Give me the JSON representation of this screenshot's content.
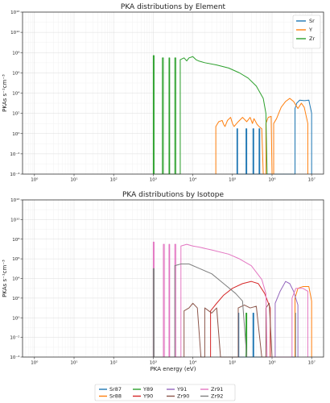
{
  "chart_data": [
    {
      "type": "line",
      "title": "PKA distributions by Element",
      "xlabel": "",
      "ylabel": "PKAs s$^{-1}$cm$^{-3}$",
      "xscale": "log",
      "yscale": "log",
      "xlim": [
        0.5,
        20000000
      ],
      "ylim": [
        0.0001,
        1000000000000
      ],
      "x_ticks": [
        "10^0",
        "10^1",
        "10^2",
        "10^3",
        "10^4",
        "10^5",
        "10^6",
        "10^7"
      ],
      "y_ticks": [
        "10^-4",
        "10^-2",
        "10^0",
        "10^2",
        "10^4",
        "10^6",
        "10^8",
        "10^10",
        "10^12"
      ],
      "grid": true,
      "legend": "top-right",
      "series": [
        {
          "name": "Sr",
          "color": "#1f77b4",
          "points": [
            [
              130000,
              0.0001
            ],
            [
              130000,
              3
            ],
            [
              135000,
              3
            ],
            [
              135000,
              0.0001
            ],
            [
              220000,
              0.0001
            ],
            [
              220000,
              3
            ],
            [
              230000,
              3
            ],
            [
              230000,
              0.0001
            ],
            [
              330000,
              0.0001
            ],
            [
              330000,
              3
            ],
            [
              345000,
              3
            ],
            [
              345000,
              0.0001
            ],
            [
              470000,
              0.0001
            ],
            [
              470000,
              3
            ],
            [
              490000,
              3
            ],
            [
              490000,
              0.0001
            ],
            [
              3800000,
              0.0001
            ],
            [
              3800000,
              300
            ],
            [
              4200000,
              1000
            ],
            [
              5000000,
              2000
            ],
            [
              6500000,
              1800
            ],
            [
              8500000,
              2000
            ],
            [
              10000000,
              100
            ],
            [
              10000000,
              0.0001
            ]
          ]
        },
        {
          "name": "Y",
          "color": "#ff7f0e",
          "points": [
            [
              38000,
              0.0001
            ],
            [
              38000,
              5
            ],
            [
              45000,
              15
            ],
            [
              55000,
              20
            ],
            [
              60000,
              8
            ],
            [
              65000,
              5
            ],
            [
              75000,
              20
            ],
            [
              90000,
              40
            ],
            [
              100000,
              10
            ],
            [
              110000,
              5
            ],
            [
              140000,
              15
            ],
            [
              180000,
              40
            ],
            [
              230000,
              15
            ],
            [
              280000,
              40
            ],
            [
              320000,
              10
            ],
            [
              350000,
              30
            ],
            [
              420000,
              8
            ],
            [
              470000,
              5
            ],
            [
              550000,
              3
            ],
            [
              600000,
              0.0001
            ],
            [
              700000,
              0.0001
            ],
            [
              700000,
              10
            ],
            [
              800000,
              40
            ],
            [
              950000,
              50
            ],
            [
              1000000,
              0.0001
            ],
            [
              1100000,
              0.0001
            ],
            [
              1100000,
              10
            ],
            [
              1300000,
              30
            ],
            [
              1700000,
              400
            ],
            [
              2200000,
              1500
            ],
            [
              2800000,
              3000
            ],
            [
              3500000,
              1500
            ],
            [
              4500000,
              300
            ],
            [
              5500000,
              1000
            ],
            [
              6500000,
              400
            ],
            [
              8000000,
              10
            ],
            [
              8000000,
              0.0001
            ]
          ]
        },
        {
          "name": "Zr",
          "color": "#2ca02c",
          "points": [
            [
              1000,
              0.0001
            ],
            [
              1000,
              50000000
            ],
            [
              1050,
              50000000
            ],
            [
              1050,
              0.0001
            ],
            [
              1700,
              0.0001
            ],
            [
              1700,
              30000000
            ],
            [
              1800,
              30000000
            ],
            [
              1800,
              0.0001
            ],
            [
              2500,
              0.0001
            ],
            [
              2500,
              30000000
            ],
            [
              2600,
              30000000
            ],
            [
              2600,
              0.0001
            ],
            [
              3500,
              0.0001
            ],
            [
              3500,
              30000000
            ],
            [
              3700,
              30000000
            ],
            [
              3700,
              0.0001
            ],
            [
              4800,
              0.0001
            ],
            [
              4800,
              20000000
            ],
            [
              6000,
              30000000
            ],
            [
              7000,
              15000000
            ],
            [
              8000,
              30000000
            ],
            [
              10000,
              40000000
            ],
            [
              12000,
              20000000
            ],
            [
              14000,
              15000000
            ],
            [
              20000,
              10000000
            ],
            [
              40000,
              6000000
            ],
            [
              80000,
              3000000
            ],
            [
              150000,
              1000000
            ],
            [
              250000,
              300000
            ],
            [
              400000,
              50000
            ],
            [
              600000,
              3000
            ],
            [
              700000,
              100
            ],
            [
              750000,
              0.0001
            ]
          ]
        }
      ]
    },
    {
      "type": "line",
      "title": "PKA distributions by Isotope",
      "xlabel": "PKA energy (eV)",
      "ylabel": "PKAs s$^{-1}$cm$^{-3}$",
      "xscale": "log",
      "yscale": "log",
      "xlim": [
        0.5,
        20000000
      ],
      "ylim": [
        0.0001,
        1000000000000
      ],
      "x_ticks": [
        "10^0",
        "10^1",
        "10^2",
        "10^3",
        "10^4",
        "10^5",
        "10^6",
        "10^7"
      ],
      "y_ticks": [
        "10^-4",
        "10^-2",
        "10^0",
        "10^2",
        "10^4",
        "10^6",
        "10^8",
        "10^10",
        "10^12"
      ],
      "grid": true,
      "legend": "bottom",
      "series": [
        {
          "name": "Sr87",
          "color": "#1f77b4",
          "points": [
            [
              140000,
              0.0001
            ],
            [
              140000,
              3
            ],
            [
              145000,
              3
            ],
            [
              145000,
              0.0001
            ],
            [
              330000,
              0.0001
            ],
            [
              330000,
              3
            ],
            [
              345000,
              3
            ],
            [
              345000,
              0.0001
            ],
            [
              3800000,
              0.0001
            ],
            [
              3800000,
              3
            ],
            [
              3900000,
              3
            ],
            [
              3900000,
              0.0001
            ]
          ]
        },
        {
          "name": "Sr88",
          "color": "#ff7f0e",
          "points": [
            [
              3800000,
              0.0001
            ],
            [
              3800000,
              100
            ],
            [
              4500000,
              1000
            ],
            [
              6000000,
              1500
            ],
            [
              8500000,
              1500
            ],
            [
              10000000,
              50
            ],
            [
              10000000,
              0.0001
            ]
          ]
        },
        {
          "name": "Y89",
          "color": "#2ca02c",
          "points": [
            [
              220000,
              0.0001
            ],
            [
              220000,
              3
            ],
            [
              230000,
              3
            ],
            [
              230000,
              0.0001
            ]
          ]
        },
        {
          "name": "Y90",
          "color": "#d62728",
          "points": [
            [
              28000,
              0.0001
            ],
            [
              28000,
              5
            ],
            [
              40000,
              30
            ],
            [
              60000,
              200
            ],
            [
              100000,
              1000
            ],
            [
              180000,
              3000
            ],
            [
              300000,
              5000
            ],
            [
              450000,
              3000
            ],
            [
              650000,
              300
            ],
            [
              900000,
              10
            ],
            [
              900000,
              0.0001
            ]
          ]
        },
        {
          "name": "Y91",
          "color": "#9467bd",
          "points": [
            [
              1200000,
              0.0001
            ],
            [
              1200000,
              30
            ],
            [
              1600000,
              500
            ],
            [
              2200000,
              5000
            ],
            [
              2800000,
              3000
            ],
            [
              3500000,
              500
            ],
            [
              4500000,
              20
            ],
            [
              4500000,
              0.0001
            ]
          ]
        },
        {
          "name": "Zr90",
          "color": "#8c564b",
          "points": [
            [
              6000,
              0.0001
            ],
            [
              6000,
              5
            ],
            [
              8000,
              10
            ],
            [
              10000,
              30
            ],
            [
              13000,
              10
            ],
            [
              16000,
              0.0001
            ],
            [
              20000,
              0.0001
            ],
            [
              20000,
              10
            ],
            [
              30000,
              3
            ],
            [
              40000,
              10
            ],
            [
              50000,
              0.0001
            ],
            [
              140000,
              0.0001
            ],
            [
              140000,
              10
            ],
            [
              200000,
              20
            ],
            [
              280000,
              10
            ],
            [
              400000,
              15
            ],
            [
              550000,
              0.0001
            ],
            [
              700000,
              0.0001
            ],
            [
              700000,
              10
            ],
            [
              850000,
              30
            ],
            [
              1000000,
              0.0001
            ]
          ]
        },
        {
          "name": "Zr91",
          "color": "#e377c2",
          "points": [
            [
              1000,
              0.0001
            ],
            [
              1000,
              50000000
            ],
            [
              1050,
              50000000
            ],
            [
              1050,
              0.0001
            ],
            [
              1800,
              0.0001
            ],
            [
              1800,
              30000000
            ],
            [
              1900,
              30000000
            ],
            [
              1900,
              0.0001
            ],
            [
              2500,
              0.0001
            ],
            [
              2500,
              30000000
            ],
            [
              2600,
              30000000
            ],
            [
              2600,
              0.0001
            ],
            [
              3500,
              0.0001
            ],
            [
              3500,
              30000000
            ],
            [
              3700,
              30000000
            ],
            [
              3700,
              0.0001
            ],
            [
              5000,
              0.0001
            ],
            [
              5000,
              20000000
            ],
            [
              7000,
              30000000
            ],
            [
              10000,
              20000000
            ],
            [
              15000,
              15000000
            ],
            [
              30000,
              8000000
            ],
            [
              80000,
              3000000
            ],
            [
              150000,
              1000000
            ],
            [
              300000,
              200000
            ],
            [
              550000,
              8000
            ],
            [
              700000,
              300
            ],
            [
              750000,
              0.0001
            ],
            [
              3200000,
              0.0001
            ],
            [
              3200000,
              100
            ],
            [
              4000000,
              1000
            ],
            [
              6000000,
              1000
            ],
            [
              8000000,
              500
            ],
            [
              8000000,
              0.0001
            ]
          ]
        },
        {
          "name": "Zr92",
          "color": "#7f7f7f",
          "points": [
            [
              1000,
              0.0001
            ],
            [
              1000,
              100000
            ],
            [
              1050,
              100000
            ],
            [
              1050,
              0.0001
            ],
            [
              3500,
              0.0001
            ],
            [
              3500,
              200000
            ],
            [
              5000,
              300000
            ],
            [
              8000,
              300000
            ],
            [
              15000,
              100000
            ],
            [
              30000,
              30000
            ],
            [
              60000,
              3000
            ],
            [
              120000,
              300
            ],
            [
              180000,
              50
            ],
            [
              230000,
              0.0001
            ]
          ]
        }
      ]
    }
  ]
}
